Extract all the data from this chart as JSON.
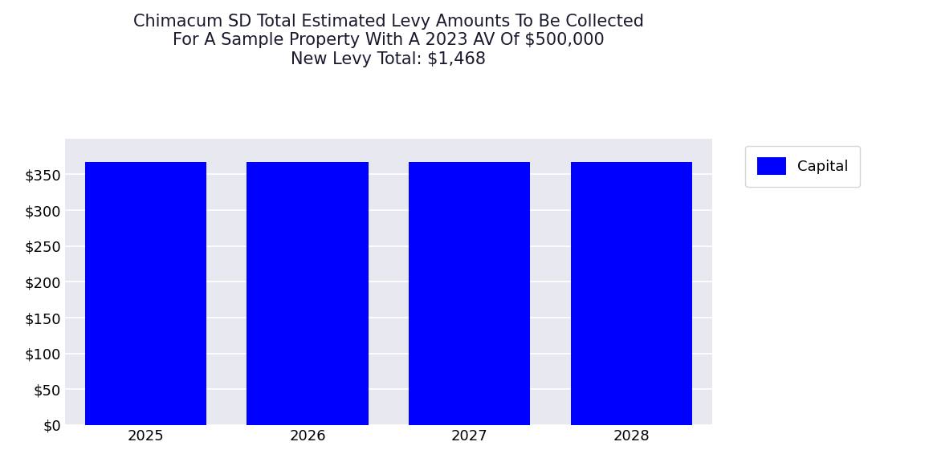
{
  "title_line1": "Chimacum SD Total Estimated Levy Amounts To Be Collected",
  "title_line2": "For A Sample Property With A 2023 AV Of $500,000",
  "title_line3": "New Levy Total: $1,468",
  "years": [
    2025,
    2026,
    2027,
    2028
  ],
  "capital_values": [
    367,
    367,
    367,
    367
  ],
  "bar_color": "#0000FF",
  "legend_label": "Capital",
  "ylim": [
    0,
    400
  ],
  "yticks": [
    0,
    50,
    100,
    150,
    200,
    250,
    300,
    350
  ],
  "plot_bg_color": "#E8E8F0",
  "fig_bg_color": "#FFFFFF",
  "title_color": "#1a1a2e",
  "bar_width": 0.75,
  "title_fontsize": 15,
  "tick_fontsize": 13
}
